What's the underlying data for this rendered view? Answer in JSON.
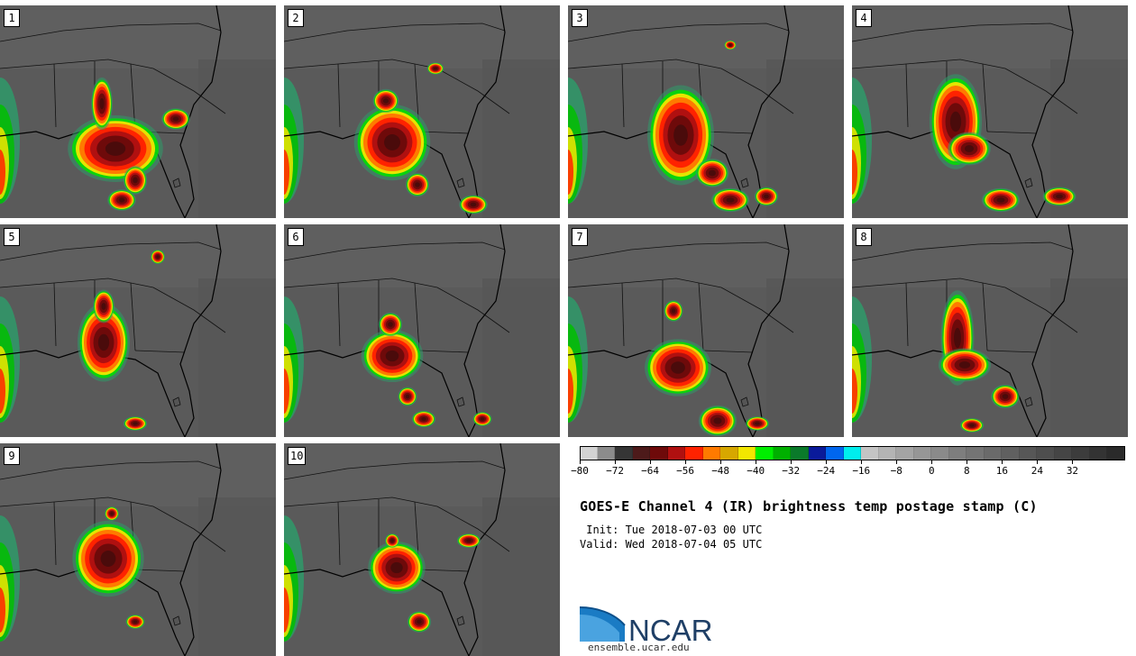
{
  "panels": [
    {
      "label": "1"
    },
    {
      "label": "2"
    },
    {
      "label": "3"
    },
    {
      "label": "4"
    },
    {
      "label": "5"
    },
    {
      "label": "6"
    },
    {
      "label": "7"
    },
    {
      "label": "8"
    },
    {
      "label": "9"
    },
    {
      "label": "10"
    }
  ],
  "colorbar": {
    "colors": [
      "#d3d3d3",
      "#8c8c8c",
      "#353535",
      "#4d1a1a",
      "#6e0a0a",
      "#b01010",
      "#ff2200",
      "#ff7a00",
      "#d7a700",
      "#f2e600",
      "#00ee00",
      "#00b000",
      "#0a7a2a",
      "#0a1a9a",
      "#0066ee",
      "#00eeee",
      "#c4c4c4",
      "#b4b4b4",
      "#a4a4a4",
      "#969696",
      "#8a8a8a",
      "#7e7e7e",
      "#747474",
      "#6a6a6a",
      "#606060",
      "#575757",
      "#4e4e4e",
      "#454545",
      "#3c3c3c",
      "#333333",
      "#2a2a2a"
    ],
    "ticks": [
      "−80",
      "−72",
      "−64",
      "−56",
      "−48",
      "−40",
      "−32",
      "−24",
      "−16",
      "−8",
      "0",
      "8",
      "16",
      "24",
      "32"
    ]
  },
  "title": "GOES-E Channel 4 (IR) brightness temp postage stamp (C)",
  "init_line": " Init: Tue 2018-07-03 00 UTC",
  "valid_line": "Valid: Wed 2018-07-04 05 UTC",
  "logo": {
    "text": "NCAR",
    "url": "ensemble.ucar.edu"
  }
}
